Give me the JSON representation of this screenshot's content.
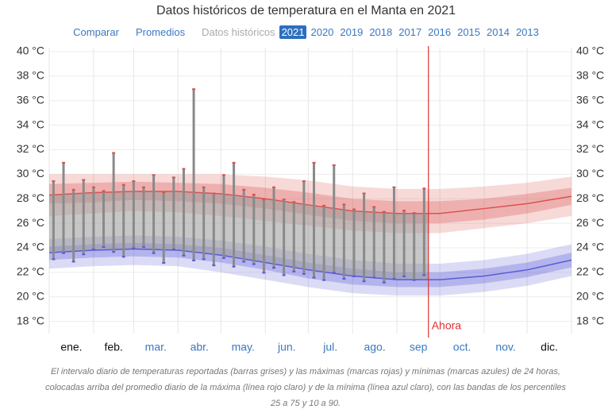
{
  "chart_data": {
    "type": "temperature-history",
    "title": "Datos históricos de temperatura en el Manta en 2021",
    "nav": {
      "links": [
        "Comparar",
        "Promedios"
      ],
      "current": "Datos históricos",
      "years": [
        "2021",
        "2020",
        "2019",
        "2018",
        "2017",
        "2016",
        "2015",
        "2014",
        "2013"
      ],
      "selected": 0
    },
    "categories": [
      "ene.",
      "feb.",
      "mar.",
      "abr.",
      "may.",
      "jun.",
      "jul.",
      "ago.",
      "sep",
      "oct.",
      "nov.",
      "dic."
    ],
    "x": [
      0,
      31,
      59,
      90,
      120,
      151,
      181,
      212,
      243,
      273,
      304,
      334,
      365
    ],
    "xlim": [
      0,
      365
    ],
    "ylim": [
      17,
      40
    ],
    "yticks": [
      {
        "value": 18,
        "label": "18 °C"
      },
      {
        "value": 20,
        "label": "20 °C"
      },
      {
        "value": 22,
        "label": "22 °C"
      },
      {
        "value": 24,
        "label": "24 °C"
      },
      {
        "value": 26,
        "label": "26 °C"
      },
      {
        "value": 28,
        "label": "28 °C"
      },
      {
        "value": 30,
        "label": "30 °C"
      },
      {
        "value": 32,
        "label": "32 °C"
      },
      {
        "value": 34,
        "label": "34 °C"
      },
      {
        "value": 36,
        "label": "36 °C"
      },
      {
        "value": 38,
        "label": "38 °C"
      },
      {
        "value": 40,
        "label": "40 °C"
      }
    ],
    "max": {
      "color": "#d9534f",
      "p10": [
        26.6,
        26.8,
        27,
        26.9,
        26.6,
        26.2,
        25.8,
        25.4,
        25.2,
        25.2,
        25.6,
        26,
        26.6
      ],
      "p25": [
        27.6,
        27.7,
        27.9,
        27.8,
        27.6,
        27.2,
        26.7,
        26.2,
        26,
        26,
        26.3,
        26.8,
        27.5
      ],
      "mean": [
        28.3,
        28.5,
        28.6,
        28.6,
        28.4,
        28,
        27.5,
        27,
        26.8,
        26.8,
        27.2,
        27.6,
        28.2
      ],
      "p75": [
        29.2,
        29.3,
        29.4,
        29.3,
        29.2,
        28.9,
        28.5,
        28,
        27.8,
        27.8,
        28,
        28.4,
        28.9
      ],
      "p90": [
        30,
        30,
        30,
        30,
        30,
        29.8,
        29.5,
        29,
        28.8,
        28.8,
        29,
        29.3,
        29.8
      ]
    },
    "min": {
      "color": "#5b5bd6",
      "p10": [
        22.3,
        22.5,
        22.6,
        22.5,
        22,
        21.4,
        20.8,
        20.3,
        20.1,
        20.1,
        20.4,
        20.9,
        21.7
      ],
      "p25": [
        23,
        23.2,
        23.3,
        23.2,
        22.8,
        22.2,
        21.5,
        21,
        20.8,
        20.8,
        21.1,
        21.6,
        22.4
      ],
      "mean": [
        23.6,
        23.8,
        23.9,
        23.8,
        23.4,
        22.8,
        22.2,
        21.7,
        21.4,
        21.4,
        21.7,
        22.2,
        23
      ],
      "p75": [
        24.1,
        24.3,
        24.4,
        24.3,
        24,
        23.4,
        22.8,
        22.3,
        22,
        22,
        22.3,
        22.8,
        23.6
      ],
      "p90": [
        24.7,
        24.9,
        25,
        24.9,
        24.6,
        24.1,
        23.5,
        23,
        22.7,
        22.7,
        23,
        23.5,
        24.3
      ]
    },
    "bars": {
      "color": "#8a8a8a",
      "days": [
        3,
        10,
        17,
        24,
        31,
        38,
        45,
        52,
        59,
        66,
        73,
        80,
        87,
        94,
        101,
        108,
        115,
        122,
        129,
        136,
        143,
        150,
        157,
        164,
        171,
        178,
        185,
        192,
        199,
        206,
        213,
        220,
        227,
        234,
        241,
        248,
        255,
        262
      ],
      "lows": [
        23,
        23.5,
        22.8,
        23.4,
        23.8,
        24,
        23.6,
        23.2,
        23.9,
        24,
        23.5,
        22.7,
        23.8,
        23.3,
        22.9,
        23,
        22.5,
        23.1,
        22.4,
        22.8,
        22.6,
        21.9,
        22.3,
        21.7,
        22,
        21.8,
        21.5,
        21.3,
        21.9,
        21.4,
        21.6,
        21.2,
        21.5,
        21.1,
        21.4,
        21.6,
        21.3,
        21.7
      ],
      "highs": [
        29.5,
        31,
        28.8,
        29.6,
        29,
        28.7,
        31.8,
        29.2,
        29.5,
        29,
        30,
        28.6,
        29.8,
        30.5,
        37,
        29,
        28.5,
        30,
        31,
        28.8,
        28.4,
        28,
        29,
        28,
        27.8,
        29.5,
        31,
        27.5,
        30.8,
        27.6,
        27.2,
        28.5,
        27.4,
        27,
        29,
        27.1,
        26.9,
        28.9
      ]
    },
    "now": {
      "day": 265,
      "label": "Ahora",
      "color": "#e03030"
    },
    "caption": "El intervalo diario de temperaturas reportadas (barras grises) y las máximas (marcas rojas) y mínimas (marcas azules) de 24 horas, colocadas arriba del promedio diario de la máxima (línea rojo claro) y de la mínima (línea azul claro), con las bandas de los percentiles 25 a 75 y 10 a 90."
  }
}
